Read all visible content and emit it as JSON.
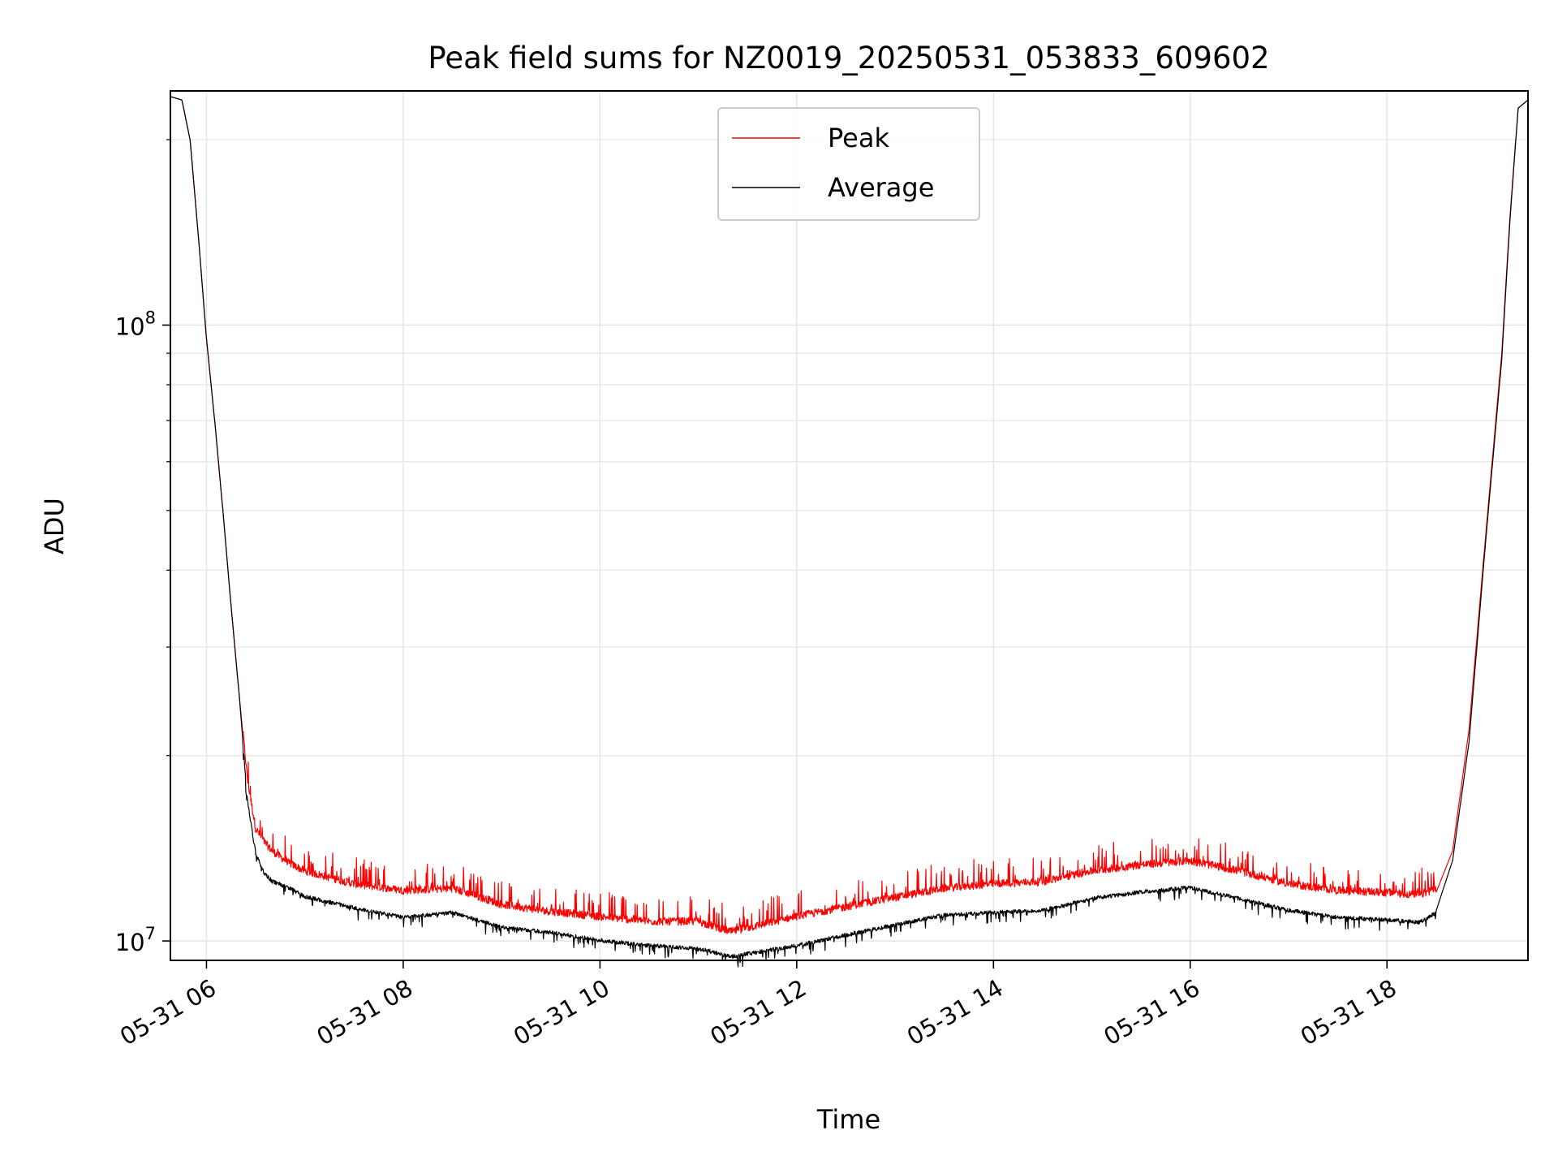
{
  "chart_data": {
    "type": "line",
    "title": "Peak field sums for NZ0019_20250531_053833_609602",
    "xlabel": "Time",
    "ylabel": "ADU",
    "y_scale": "log",
    "ylim": [
      9300000,
      240000000
    ],
    "xlim": [
      "2025-05-31 05:38",
      "2025-05-31 19:26"
    ],
    "grid": true,
    "legend_placement": "upper center",
    "x_ticks": [
      "2025-05-31 06:00",
      "2025-05-31 08:00",
      "2025-05-31 10:00",
      "2025-05-31 12:00",
      "2025-05-31 14:00",
      "2025-05-31 16:00",
      "2025-05-31 18:00"
    ],
    "x_tick_labels": [
      "05-31 06",
      "05-31 08",
      "05-31 10",
      "05-31 12",
      "05-31 14",
      "05-31 16",
      "05-31 18"
    ],
    "y_ticks": [
      10000000,
      100000000
    ],
    "y_tick_labels": [
      {
        "base": "10",
        "exp": "7"
      },
      {
        "base": "10",
        "exp": "8"
      }
    ],
    "series": [
      {
        "name": "Peak",
        "color": "#ff0000",
        "x": [
          "2025-05-31 05:38",
          "2025-05-31 05:45",
          "2025-05-31 05:50",
          "2025-05-31 05:55",
          "2025-05-31 06:00",
          "2025-05-31 06:05",
          "2025-05-31 06:10",
          "2025-05-31 06:15",
          "2025-05-31 06:20",
          "2025-05-31 06:25",
          "2025-05-31 06:30",
          "2025-05-31 06:35",
          "2025-05-31 06:40",
          "2025-05-31 06:50",
          "2025-05-31 07:00",
          "2025-05-31 07:30",
          "2025-05-31 08:00",
          "2025-05-31 08:30",
          "2025-05-31 09:00",
          "2025-05-31 09:30",
          "2025-05-31 10:00",
          "2025-05-31 10:30",
          "2025-05-31 11:00",
          "2025-05-31 11:20",
          "2025-05-31 12:00",
          "2025-05-31 12:30",
          "2025-05-31 13:00",
          "2025-05-31 13:30",
          "2025-05-31 14:00",
          "2025-05-31 14:30",
          "2025-05-31 15:00",
          "2025-05-31 15:30",
          "2025-05-31 16:00",
          "2025-05-31 16:30",
          "2025-05-31 17:00",
          "2025-05-31 17:30",
          "2025-05-31 18:00",
          "2025-05-31 18:20",
          "2025-05-31 18:30",
          "2025-05-31 18:40",
          "2025-05-31 18:50",
          "2025-05-31 19:00",
          "2025-05-31 19:10",
          "2025-05-31 19:15",
          "2025-05-31 19:20",
          "2025-05-31 19:26"
        ],
        "y": [
          235000000,
          232000000,
          200000000,
          140000000,
          95000000,
          70000000,
          50000000,
          35000000,
          25000000,
          18000000,
          15000000,
          14300000,
          13800000,
          13200000,
          12800000,
          12200000,
          11900000,
          12000000,
          11300000,
          11000000,
          10800000,
          10600000,
          10600000,
          10200000,
          10800000,
          11200000,
          11600000,
          12000000,
          12200000,
          12300000,
          12800000,
          13100000,
          13300000,
          12800000,
          12200000,
          11900000,
          11800000,
          11700000,
          12000000,
          14000000,
          22000000,
          45000000,
          90000000,
          150000000,
          225000000,
          232000000
        ]
      },
      {
        "name": "Average",
        "color": "#000000",
        "x": [
          "2025-05-31 05:38",
          "2025-05-31 05:45",
          "2025-05-31 05:50",
          "2025-05-31 05:55",
          "2025-05-31 06:00",
          "2025-05-31 06:05",
          "2025-05-31 06:10",
          "2025-05-31 06:15",
          "2025-05-31 06:20",
          "2025-05-31 06:25",
          "2025-05-31 06:30",
          "2025-05-31 06:35",
          "2025-05-31 06:40",
          "2025-05-31 06:50",
          "2025-05-31 07:00",
          "2025-05-31 07:30",
          "2025-05-31 08:00",
          "2025-05-31 08:30",
          "2025-05-31 09:00",
          "2025-05-31 09:30",
          "2025-05-31 10:00",
          "2025-05-31 10:30",
          "2025-05-31 11:00",
          "2025-05-31 11:20",
          "2025-05-31 12:00",
          "2025-05-31 12:30",
          "2025-05-31 13:00",
          "2025-05-31 13:30",
          "2025-05-31 14:00",
          "2025-05-31 14:30",
          "2025-05-31 15:00",
          "2025-05-31 15:30",
          "2025-05-31 16:00",
          "2025-05-31 16:30",
          "2025-05-31 17:00",
          "2025-05-31 17:30",
          "2025-05-31 18:00",
          "2025-05-31 18:20",
          "2025-05-31 18:30",
          "2025-05-31 18:40",
          "2025-05-31 18:50",
          "2025-05-31 19:00",
          "2025-05-31 19:10",
          "2025-05-31 19:15",
          "2025-05-31 19:20",
          "2025-05-31 19:26"
        ],
        "y": [
          235000000,
          232000000,
          200000000,
          140000000,
          95000000,
          70000000,
          50000000,
          35000000,
          25000000,
          17000000,
          14000000,
          13000000,
          12600000,
          12300000,
          11900000,
          11400000,
          11000000,
          11200000,
          10600000,
          10400000,
          10100000,
          9900000,
          9800000,
          9500000,
          9900000,
          10300000,
          10700000,
          11100000,
          11200000,
          11300000,
          11800000,
          12100000,
          12300000,
          11800000,
          11300000,
          11000000,
          10900000,
          10800000,
          11200000,
          13500000,
          21000000,
          44000000,
          88000000,
          148000000,
          225000000,
          232000000
        ]
      }
    ]
  }
}
